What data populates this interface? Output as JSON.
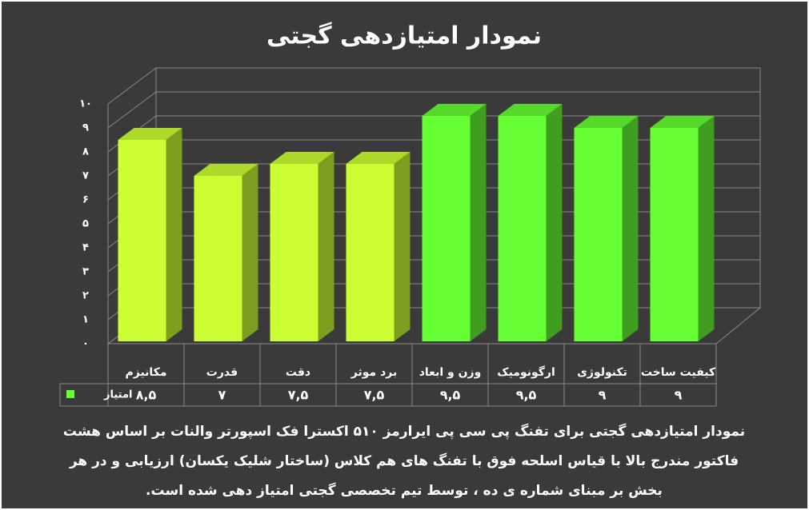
{
  "chart_data": {
    "type": "bar3d",
    "title": "نمودار امتیازدهی گجتی",
    "categories": [
      "مکانیزم",
      "قدرت",
      "دقت",
      "برد موثر",
      "وزن و ابعاد",
      "ارگونومیک",
      "تکنولوژی",
      "کیفیت ساخت"
    ],
    "series": [
      {
        "name": "امتیاز",
        "color": "#66ff33",
        "colors": [
          "#ccff33",
          "#ccff33",
          "#ccff33",
          "#ccff33",
          "#66ff33",
          "#66ff33",
          "#66ff33",
          "#66ff33"
        ],
        "values": [
          8.5,
          7,
          7.5,
          7.5,
          9.5,
          9.5,
          9,
          9
        ],
        "value_labels": [
          "۸,۵",
          "۷",
          "۷,۵",
          "۷,۵",
          "۹,۵",
          "۹,۵",
          "۹",
          "۹"
        ]
      }
    ],
    "ylim": [
      0,
      10
    ],
    "yticks": [
      {
        "value": 0,
        "label": "۰"
      },
      {
        "value": 1,
        "label": "۱"
      },
      {
        "value": 2,
        "label": "۲"
      },
      {
        "value": 3,
        "label": "۳"
      },
      {
        "value": 4,
        "label": "۴"
      },
      {
        "value": 5,
        "label": "۵"
      },
      {
        "value": 6,
        "label": "۶"
      },
      {
        "value": 7,
        "label": "۷"
      },
      {
        "value": 8,
        "label": "۸"
      },
      {
        "value": 9,
        "label": "۹"
      },
      {
        "value": 10,
        "label": "۱۰"
      }
    ],
    "grid": true,
    "note": [
      "نمودار امتیازدهی گجتی برای تفنگ پی سی پی ایرارمز ۵۱۰ اکسترا فک اسپورتر والنات بر اساس هشت",
      "فاکتور مندرج بالا با قیاس اسلحه فوق با تفنگ های هم کلاس (ساختار شلیک یکسان) ارزیابی و در هر",
      "بخش بر مبنای شماره ی ده ، توسط تیم تخصصی گجتی امتیاز دهی شده است."
    ]
  }
}
